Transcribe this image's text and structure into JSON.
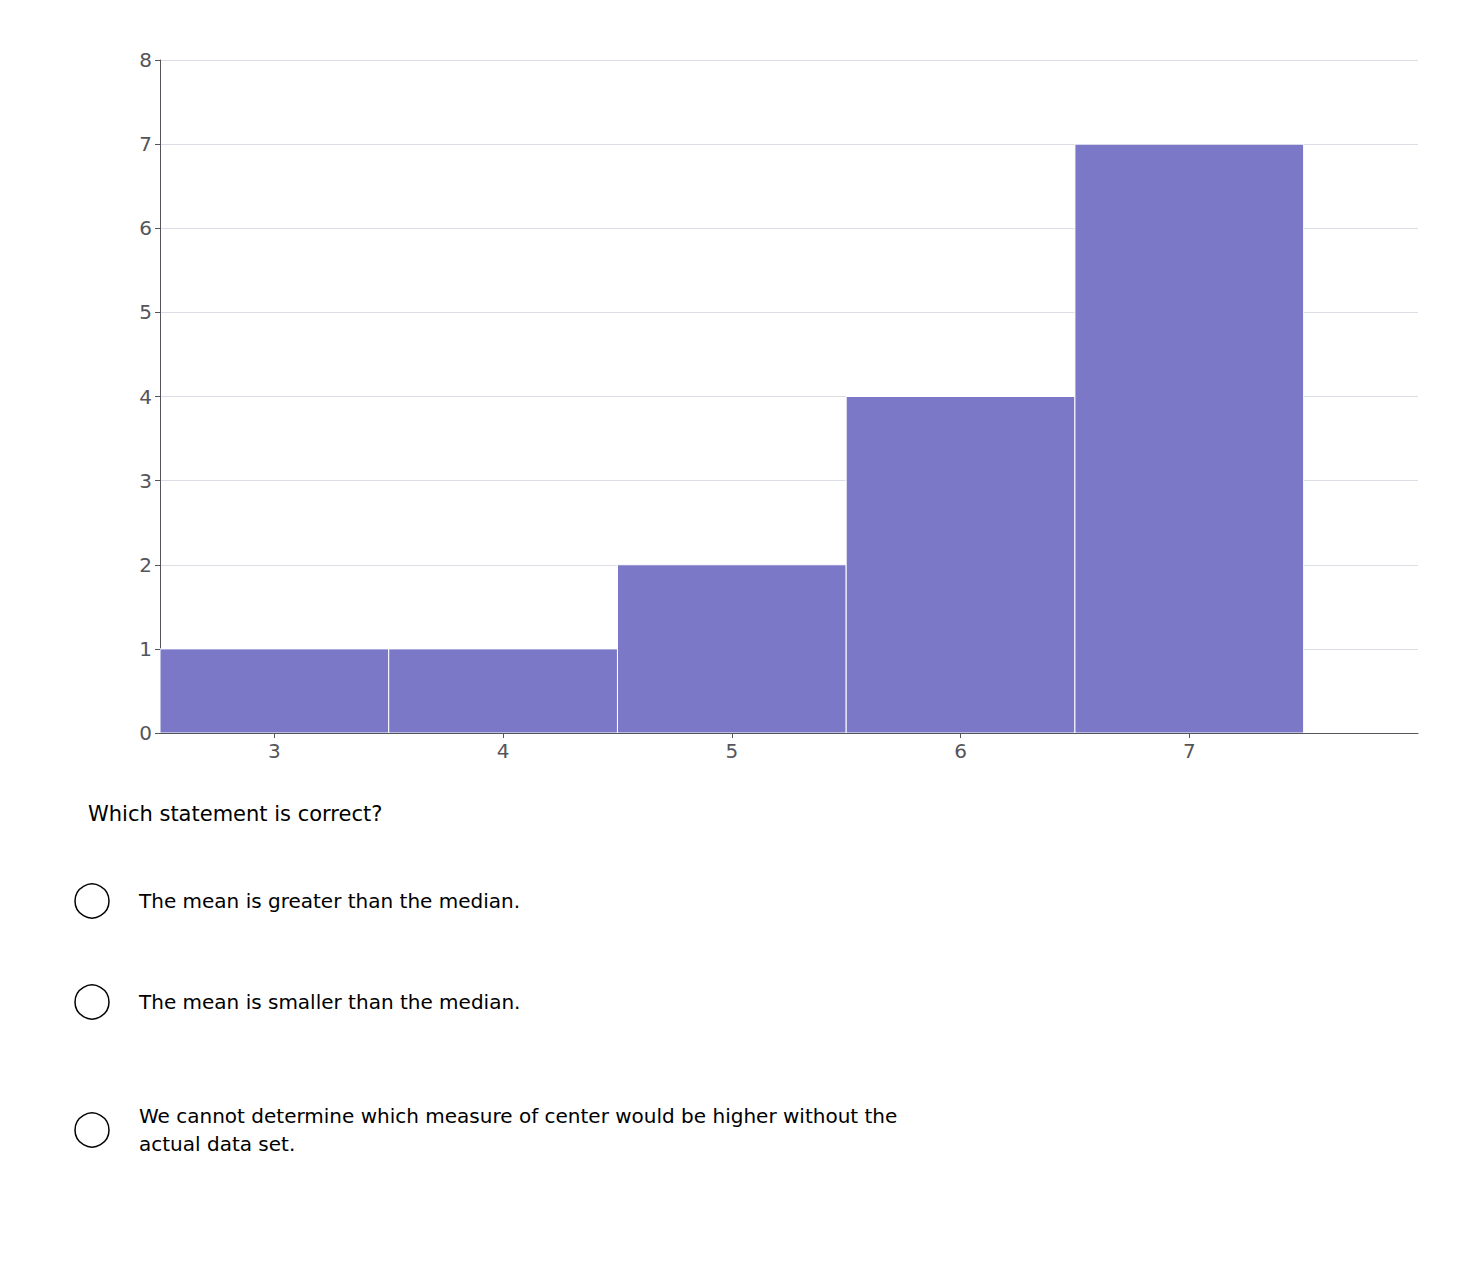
{
  "chart_data": {
    "type": "histogram",
    "bins": [
      2.5,
      3.5,
      4.5,
      5.5,
      6.5,
      7.5
    ],
    "values": [
      1,
      1,
      2,
      4,
      7
    ],
    "color": "#7b78c8",
    "xlim": [
      2.5,
      8.0
    ],
    "xticks": [
      3,
      4,
      5,
      6,
      7
    ],
    "ylim": [
      0,
      8
    ],
    "yticks": [
      0,
      1,
      2,
      3,
      4,
      5,
      6,
      7,
      8
    ],
    "grid": true,
    "question": "Which statement is correct?",
    "choices": [
      "The mean is greater than the median.",
      "The mean is smaller than the median.",
      "We cannot determine which measure of center would be higher without the\nactual data set."
    ]
  }
}
